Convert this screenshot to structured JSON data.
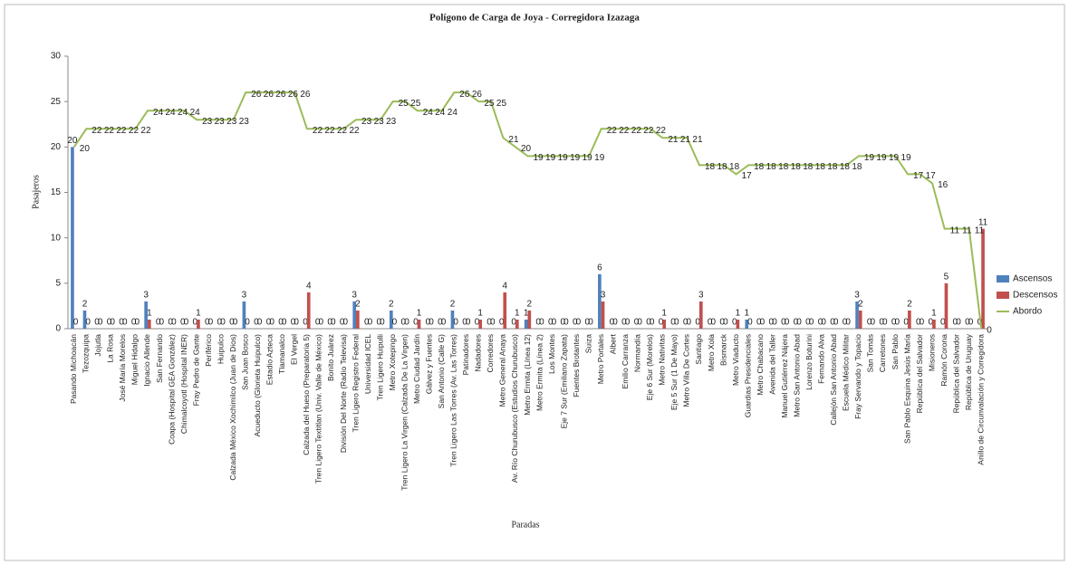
{
  "chart_data": {
    "type": "bar",
    "title": "Polígono de Carga de Joya - Corregidora Izazaga",
    "x_label": "Paradas",
    "y_label": "Pasajeros",
    "categories": [
      "Pasando Michoacán",
      "Tezozquipa",
      "Jojutla",
      "La Rosa",
      "José María Morelos",
      "Miguel Hidalgo",
      "Ignacio Allende",
      "San Fernando",
      "Coapa (Hospital GEA González)",
      "Chimalcoyotl (Hospital INER)",
      "Fray Pedro de Gante",
      "Periférico",
      "Huipulco",
      "Calzada México Xochimilco (Juan de Dios)",
      "San Juan Bosco",
      "Acueducto (Glorieta Huipulco)",
      "Estadio Azteca",
      "Tlamanalco",
      "El Vergel",
      "Calzada del Hueso (Preparatoria 5)",
      "Tren Ligero Textitlan (Univ. Valle de México)",
      "Bonito Juárez",
      "División Del Norte (Radio Televisa)",
      "Tren Ligero Registro Federal",
      "Universidad ICEL",
      "Tren Ligero Huipulli",
      "Metro Xotepingo",
      "Tren Ligero La Virgen (Calzada De La Virgen)",
      "Metro Ciudad Jardín",
      "Gálvez y Fuentes",
      "San Antonio (Calle G)",
      "Tren Ligero Las Torres (Av. Las Torres)",
      "Patinadores",
      "Nadadores",
      "Corredores",
      "Metro General Anaya",
      "Av. Río Churubusco (Estudios Churubusco)",
      "Metro Ermita (Línea 12)",
      "Metro Ermita (Línea 2)",
      "Los Montes",
      "Eje 7 Sur (Emiliano Zapata)",
      "Fuentes Brotantes",
      "Suiza",
      "Metro Portales",
      "Albert",
      "Emilio Carranza",
      "Normandía",
      "Eje 6 Sur (Morelos)",
      "Metro Nativitas",
      "Eje 5 Sur (1 De Mayo)",
      "Metro Villa De Cortes",
      "Santiago",
      "Metro Xola",
      "Bismarck",
      "Metro Viaducto",
      "Guardias Presidenciales",
      "Metro Chabacano",
      "Avenida del Taller",
      "Manuel Gutiérrez Nájera",
      "Metro San Antonio Abad",
      "Lorenzo Boturini",
      "Fernando Alva",
      "Callejón San Antonio Abad",
      "Escuela Médico Militar",
      "Fray Servando y Topacio",
      "San Tomás",
      "Carretones",
      "San Pablo",
      "San Pablo Esquina Jesús María",
      "República del Salvador",
      "Misioneros",
      "Ramón Corona",
      "República del Salvador",
      "República de Uruguay",
      "Anillo de Circunvalación y Corregidora"
    ],
    "series": [
      {
        "name": "Ascensos",
        "type": "bar",
        "color": "#4f81bd",
        "values": [
          20,
          2,
          0,
          0,
          0,
          0,
          3,
          0,
          0,
          0,
          0,
          0,
          0,
          0,
          3,
          0,
          0,
          0,
          0,
          0,
          0,
          0,
          0,
          3,
          0,
          0,
          2,
          0,
          0,
          0,
          0,
          2,
          0,
          0,
          0,
          0,
          0,
          1,
          0,
          0,
          0,
          0,
          0,
          6,
          0,
          0,
          0,
          0,
          0,
          0,
          0,
          0,
          0,
          0,
          0,
          1,
          0,
          0,
          0,
          0,
          0,
          0,
          0,
          0,
          3,
          0,
          0,
          0,
          0,
          0,
          0,
          0,
          0,
          0,
          0
        ]
      },
      {
        "name": "Descensos",
        "type": "bar",
        "color": "#c0504d",
        "values": [
          0,
          0,
          0,
          0,
          0,
          0,
          1,
          0,
          0,
          0,
          1,
          0,
          0,
          0,
          0,
          0,
          0,
          0,
          0,
          4,
          0,
          0,
          0,
          2,
          0,
          0,
          0,
          0,
          1,
          0,
          0,
          0,
          0,
          1,
          0,
          4,
          1,
          2,
          0,
          0,
          0,
          0,
          0,
          3,
          0,
          0,
          0,
          0,
          1,
          0,
          0,
          3,
          0,
          0,
          1,
          0,
          0,
          0,
          0,
          0,
          0,
          0,
          0,
          0,
          2,
          0,
          0,
          0,
          2,
          0,
          1,
          5,
          0,
          0,
          11
        ]
      },
      {
        "name": "Abordo",
        "type": "line",
        "color": "#9bbb59",
        "values": [
          20,
          22,
          22,
          22,
          22,
          22,
          24,
          24,
          24,
          24,
          23,
          23,
          23,
          23,
          26,
          26,
          26,
          26,
          26,
          22,
          22,
          22,
          22,
          23,
          23,
          23,
          25,
          25,
          24,
          24,
          24,
          26,
          26,
          25,
          25,
          21,
          20,
          19,
          19,
          19,
          19,
          19,
          19,
          22,
          22,
          22,
          22,
          22,
          21,
          21,
          21,
          18,
          18,
          18,
          17,
          18,
          18,
          18,
          18,
          18,
          18,
          18,
          18,
          18,
          19,
          19,
          19,
          19,
          17,
          17,
          16,
          11,
          11,
          11,
          0
        ]
      }
    ],
    "ylim": [
      0,
      30
    ],
    "yticks": [
      0,
      5,
      10,
      15,
      20,
      25,
      30
    ],
    "legend": "right"
  }
}
